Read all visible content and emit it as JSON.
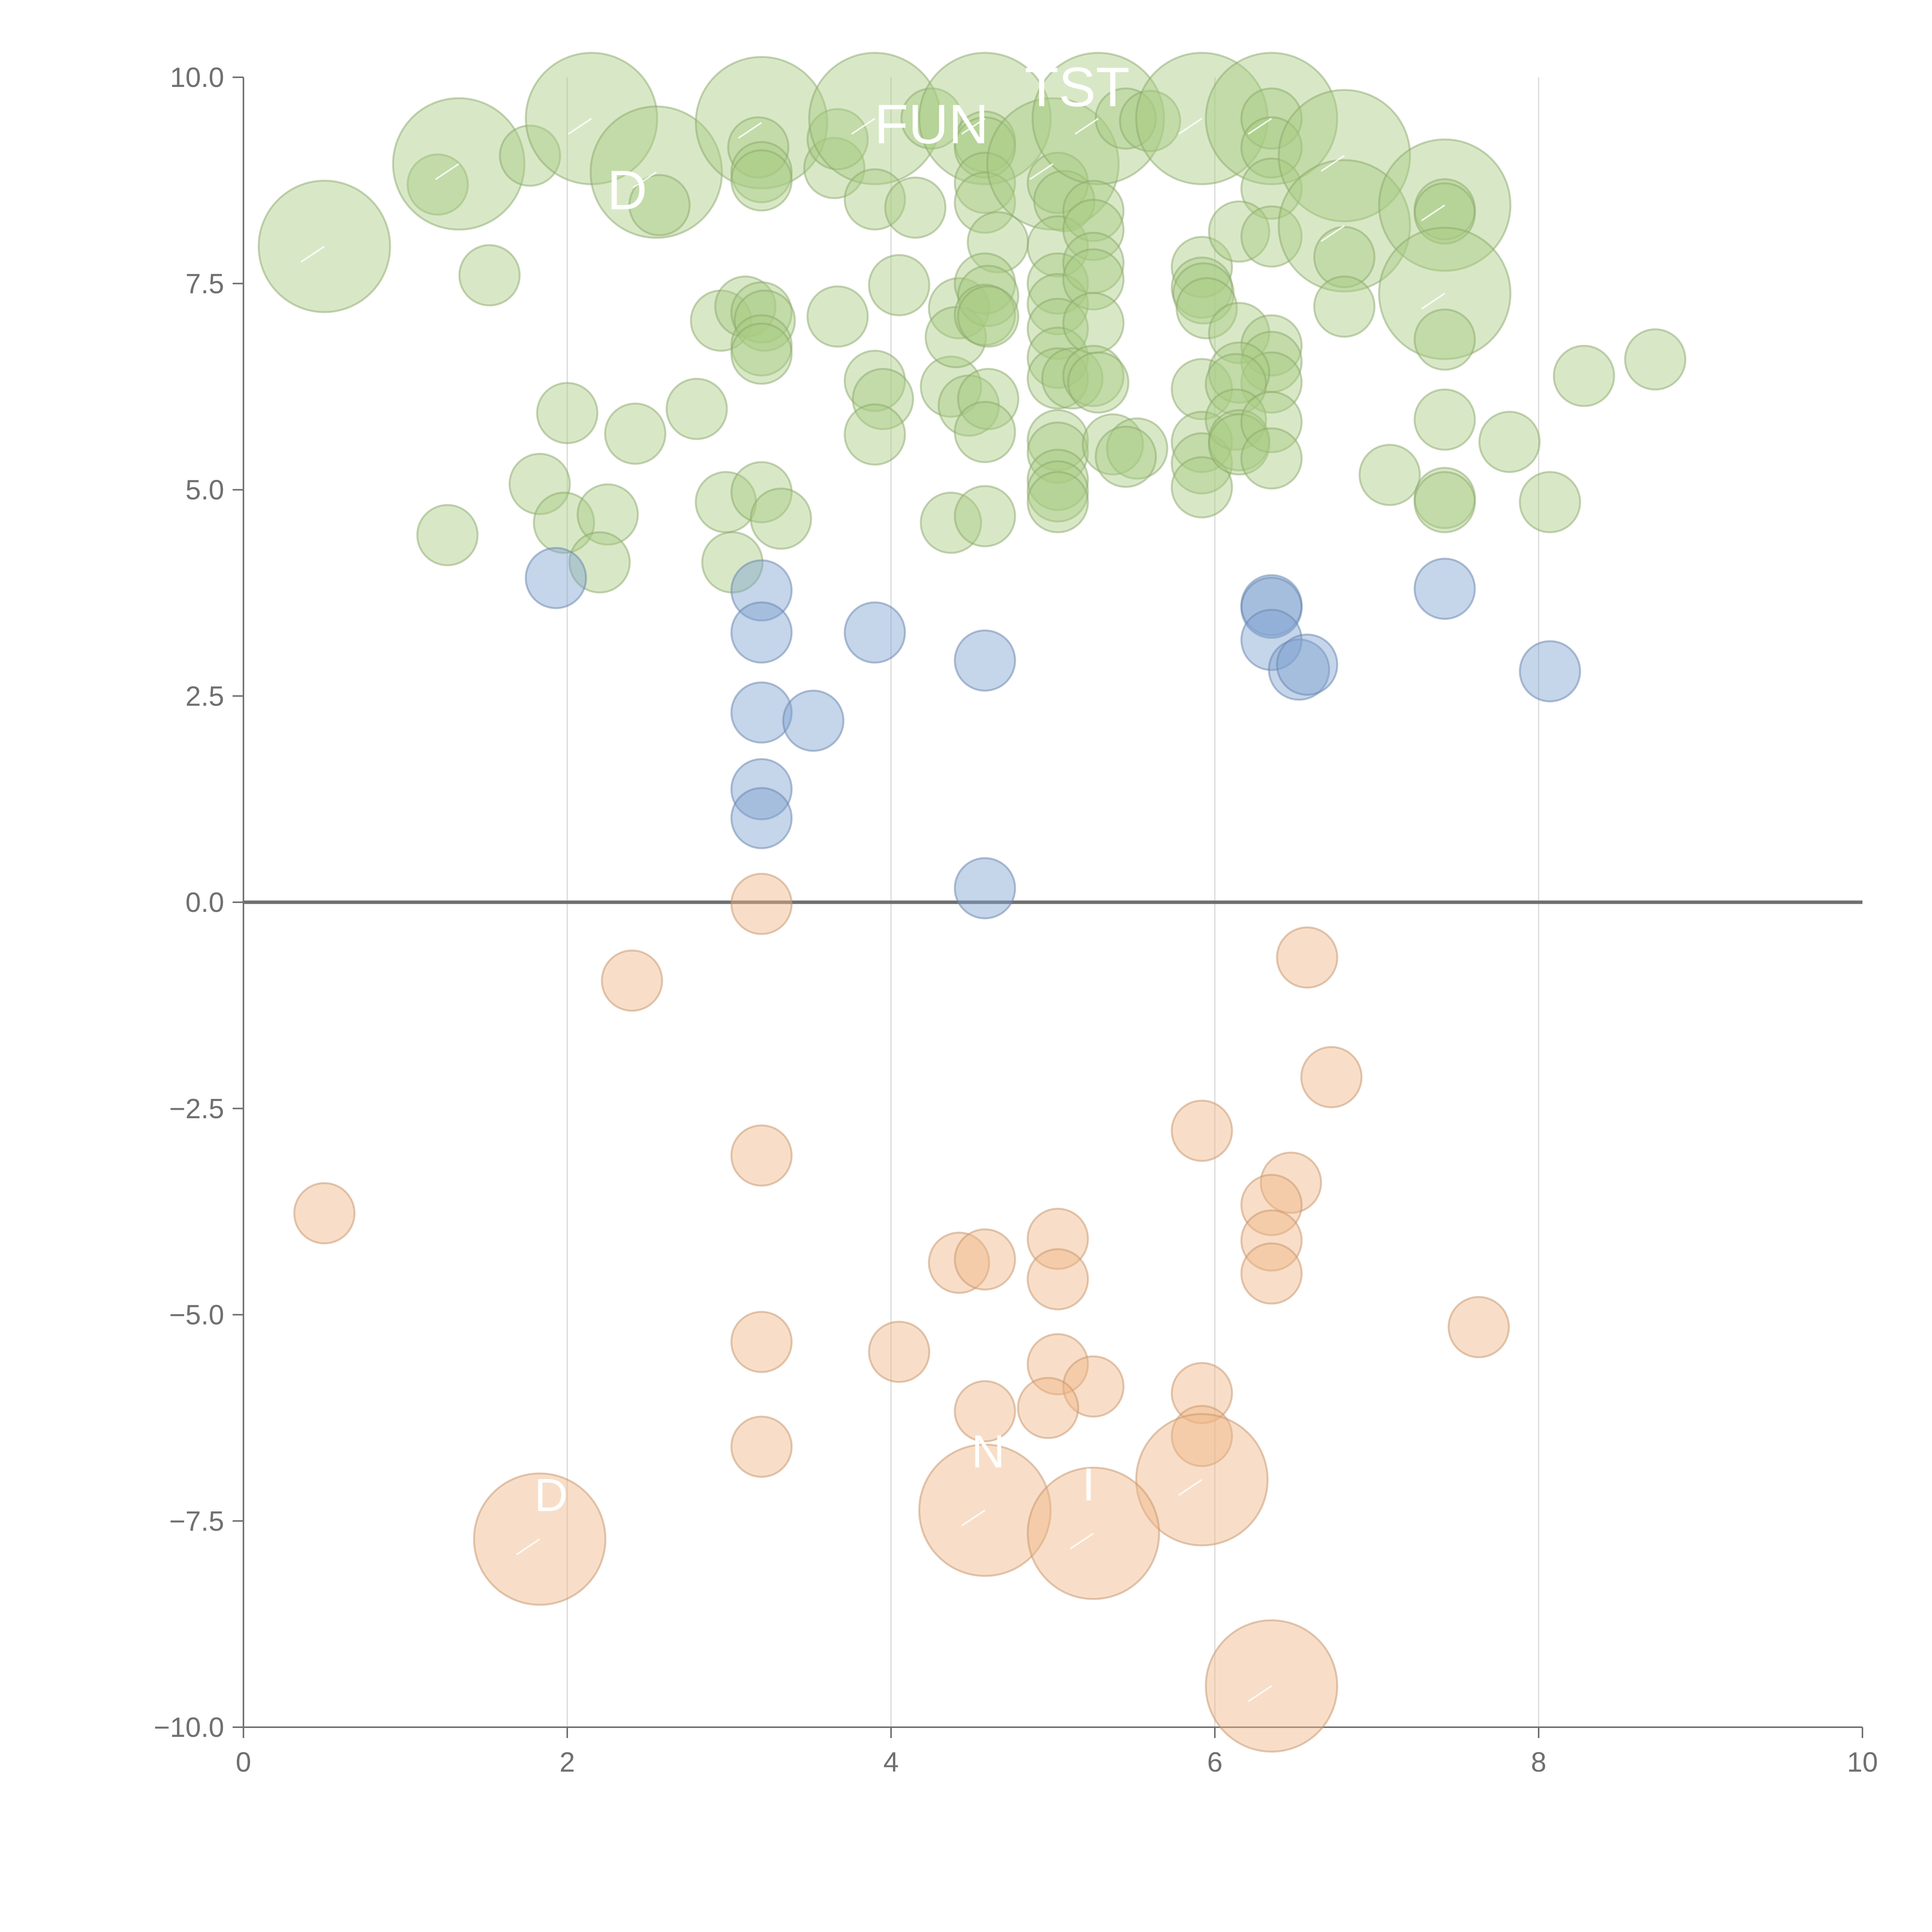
{
  "chart_data": {
    "type": "scatter",
    "subtype": "bubble",
    "title": "",
    "xlabel": "",
    "ylabel": "",
    "xlim": [
      0,
      10
    ],
    "ylim": [
      -10,
      10
    ],
    "x_ticks": [
      0,
      2,
      4,
      6,
      8,
      10
    ],
    "y_ticks": [
      -10,
      -7.5,
      -5,
      -2.5,
      0,
      2.5,
      5,
      7.5,
      10
    ],
    "x_tick_labels": [
      "0",
      "2",
      "4",
      "6",
      "8",
      "10"
    ],
    "y_tick_labels": [
      "−10.0",
      "−7.5",
      "−5.0",
      "−2.5",
      "0.0",
      "2.5",
      "5.0",
      "7.5",
      "10.0"
    ],
    "grid": "vertical",
    "zero_line": true,
    "series": [
      {
        "color": "#a9cc82",
        "points": [
          {
            "x": 0.5,
            "y": 7.95,
            "size": 3
          },
          {
            "x": 1.2,
            "y": 8.7,
            "size": 1
          },
          {
            "x": 1.33,
            "y": 8.95,
            "size": 3
          },
          {
            "x": 1.77,
            "y": 9.05,
            "size": 1
          },
          {
            "x": 2.15,
            "y": 9.5,
            "size": 3
          },
          {
            "x": 2.55,
            "y": 8.85,
            "size": 3
          },
          {
            "x": 2.57,
            "y": 8.45,
            "size": 1
          },
          {
            "x": 1.52,
            "y": 7.6,
            "size": 1
          },
          {
            "x": 2.0,
            "y": 5.93,
            "size": 1
          },
          {
            "x": 2.42,
            "y": 5.68,
            "size": 1
          },
          {
            "x": 2.8,
            "y": 5.98,
            "size": 1
          },
          {
            "x": 1.83,
            "y": 5.07,
            "size": 1
          },
          {
            "x": 1.98,
            "y": 4.6,
            "size": 1
          },
          {
            "x": 2.25,
            "y": 4.7,
            "size": 1
          },
          {
            "x": 1.26,
            "y": 4.45,
            "size": 1
          },
          {
            "x": 2.2,
            "y": 4.12,
            "size": 1
          },
          {
            "x": 2.95,
            "y": 7.05,
            "size": 1
          },
          {
            "x": 3.1,
            "y": 7.22,
            "size": 1
          },
          {
            "x": 3.2,
            "y": 9.45,
            "size": 3
          },
          {
            "x": 3.18,
            "y": 9.15,
            "size": 1
          },
          {
            "x": 3.2,
            "y": 8.85,
            "size": 1
          },
          {
            "x": 3.2,
            "y": 8.75,
            "size": 1
          },
          {
            "x": 3.2,
            "y": 7.15,
            "size": 1
          },
          {
            "x": 3.22,
            "y": 7.05,
            "size": 1
          },
          {
            "x": 3.2,
            "y": 6.75,
            "size": 1
          },
          {
            "x": 3.2,
            "y": 6.65,
            "size": 1
          },
          {
            "x": 2.98,
            "y": 4.85,
            "size": 1
          },
          {
            "x": 3.2,
            "y": 4.97,
            "size": 1
          },
          {
            "x": 3.32,
            "y": 4.65,
            "size": 1
          },
          {
            "x": 3.02,
            "y": 4.12,
            "size": 1
          },
          {
            "x": 3.65,
            "y": 8.9,
            "size": 1
          },
          {
            "x": 3.67,
            "y": 9.25,
            "size": 1
          },
          {
            "x": 3.9,
            "y": 9.5,
            "size": 3
          },
          {
            "x": 4.25,
            "y": 9.5,
            "size": 1
          },
          {
            "x": 3.9,
            "y": 8.52,
            "size": 1
          },
          {
            "x": 4.15,
            "y": 8.42,
            "size": 1
          },
          {
            "x": 3.67,
            "y": 7.1,
            "size": 1
          },
          {
            "x": 4.05,
            "y": 7.48,
            "size": 1
          },
          {
            "x": 3.9,
            "y": 6.32,
            "size": 1
          },
          {
            "x": 3.95,
            "y": 6.1,
            "size": 1
          },
          {
            "x": 3.9,
            "y": 5.67,
            "size": 1
          },
          {
            "x": 4.37,
            "y": 6.25,
            "size": 1
          },
          {
            "x": 4.37,
            "y": 4.6,
            "size": 1
          },
          {
            "x": 4.42,
            "y": 7.2,
            "size": 1
          },
          {
            "x": 4.4,
            "y": 6.85,
            "size": 1
          },
          {
            "x": 4.48,
            "y": 6.02,
            "size": 1
          },
          {
            "x": 4.58,
            "y": 9.5,
            "size": 3
          },
          {
            "x": 4.58,
            "y": 9.22,
            "size": 1
          },
          {
            "x": 4.58,
            "y": 9.15,
            "size": 1
          },
          {
            "x": 4.58,
            "y": 8.72,
            "size": 1
          },
          {
            "x": 4.58,
            "y": 8.48,
            "size": 1
          },
          {
            "x": 4.66,
            "y": 8.0,
            "size": 1
          },
          {
            "x": 4.58,
            "y": 7.5,
            "size": 1
          },
          {
            "x": 4.6,
            "y": 7.35,
            "size": 1
          },
          {
            "x": 4.58,
            "y": 7.12,
            "size": 1
          },
          {
            "x": 4.6,
            "y": 7.1,
            "size": 1
          },
          {
            "x": 4.6,
            "y": 6.1,
            "size": 1
          },
          {
            "x": 4.58,
            "y": 5.7,
            "size": 1
          },
          {
            "x": 4.58,
            "y": 4.68,
            "size": 1
          },
          {
            "x": 5.0,
            "y": 8.95,
            "size": 3
          },
          {
            "x": 5.03,
            "y": 8.72,
            "size": 1
          },
          {
            "x": 5.07,
            "y": 8.5,
            "size": 1
          },
          {
            "x": 5.03,
            "y": 7.95,
            "size": 1
          },
          {
            "x": 5.03,
            "y": 7.5,
            "size": 1
          },
          {
            "x": 5.03,
            "y": 7.25,
            "size": 1
          },
          {
            "x": 5.03,
            "y": 6.95,
            "size": 1
          },
          {
            "x": 5.03,
            "y": 6.6,
            "size": 1
          },
          {
            "x": 5.03,
            "y": 6.35,
            "size": 1
          },
          {
            "x": 5.12,
            "y": 6.35,
            "size": 1
          },
          {
            "x": 5.03,
            "y": 5.6,
            "size": 1
          },
          {
            "x": 5.03,
            "y": 5.45,
            "size": 1
          },
          {
            "x": 5.03,
            "y": 5.12,
            "size": 1
          },
          {
            "x": 5.03,
            "y": 4.98,
            "size": 1
          },
          {
            "x": 5.03,
            "y": 4.85,
            "size": 1
          },
          {
            "x": 5.28,
            "y": 9.5,
            "size": 3
          },
          {
            "x": 5.45,
            "y": 9.5,
            "size": 1
          },
          {
            "x": 5.6,
            "y": 9.47,
            "size": 1
          },
          {
            "x": 5.25,
            "y": 8.38,
            "size": 1
          },
          {
            "x": 5.25,
            "y": 8.15,
            "size": 1
          },
          {
            "x": 5.25,
            "y": 7.75,
            "size": 1
          },
          {
            "x": 5.25,
            "y": 7.55,
            "size": 1
          },
          {
            "x": 5.25,
            "y": 7.02,
            "size": 1
          },
          {
            "x": 5.25,
            "y": 6.38,
            "size": 1
          },
          {
            "x": 5.28,
            "y": 6.3,
            "size": 1
          },
          {
            "x": 5.37,
            "y": 5.55,
            "size": 1
          },
          {
            "x": 5.52,
            "y": 5.5,
            "size": 1
          },
          {
            "x": 5.45,
            "y": 5.4,
            "size": 1
          },
          {
            "x": 5.92,
            "y": 9.5,
            "size": 3
          },
          {
            "x": 5.92,
            "y": 7.7,
            "size": 1
          },
          {
            "x": 5.92,
            "y": 7.45,
            "size": 1
          },
          {
            "x": 5.93,
            "y": 7.38,
            "size": 1
          },
          {
            "x": 5.95,
            "y": 7.2,
            "size": 1
          },
          {
            "x": 5.92,
            "y": 6.22,
            "size": 1
          },
          {
            "x": 5.92,
            "y": 5.58,
            "size": 1
          },
          {
            "x": 5.92,
            "y": 5.32,
            "size": 1
          },
          {
            "x": 5.92,
            "y": 5.03,
            "size": 1
          },
          {
            "x": 6.35,
            "y": 9.5,
            "size": 3
          },
          {
            "x": 6.35,
            "y": 9.5,
            "size": 1
          },
          {
            "x": 6.35,
            "y": 9.15,
            "size": 1
          },
          {
            "x": 6.35,
            "y": 8.65,
            "size": 1
          },
          {
            "x": 6.15,
            "y": 8.13,
            "size": 1
          },
          {
            "x": 6.35,
            "y": 8.07,
            "size": 1
          },
          {
            "x": 6.15,
            "y": 6.9,
            "size": 1
          },
          {
            "x": 6.35,
            "y": 6.75,
            "size": 1
          },
          {
            "x": 6.35,
            "y": 6.55,
            "size": 1
          },
          {
            "x": 6.35,
            "y": 6.3,
            "size": 1
          },
          {
            "x": 6.15,
            "y": 6.42,
            "size": 1
          },
          {
            "x": 6.13,
            "y": 6.28,
            "size": 1
          },
          {
            "x": 6.13,
            "y": 5.85,
            "size": 1
          },
          {
            "x": 6.15,
            "y": 5.6,
            "size": 1
          },
          {
            "x": 6.15,
            "y": 5.55,
            "size": 1
          },
          {
            "x": 6.35,
            "y": 5.82,
            "size": 1
          },
          {
            "x": 6.35,
            "y": 5.38,
            "size": 1
          },
          {
            "x": 6.8,
            "y": 9.05,
            "size": 3
          },
          {
            "x": 6.8,
            "y": 8.2,
            "size": 3
          },
          {
            "x": 6.8,
            "y": 7.82,
            "size": 1
          },
          {
            "x": 6.8,
            "y": 7.22,
            "size": 1
          },
          {
            "x": 7.08,
            "y": 5.18,
            "size": 1
          },
          {
            "x": 7.42,
            "y": 8.45,
            "size": 3
          },
          {
            "x": 7.42,
            "y": 8.4,
            "size": 1
          },
          {
            "x": 7.42,
            "y": 8.35,
            "size": 1
          },
          {
            "x": 7.42,
            "y": 7.38,
            "size": 3
          },
          {
            "x": 7.42,
            "y": 6.82,
            "size": 1
          },
          {
            "x": 7.42,
            "y": 5.85,
            "size": 1
          },
          {
            "x": 7.42,
            "y": 4.9,
            "size": 1
          },
          {
            "x": 7.42,
            "y": 4.85,
            "size": 1
          },
          {
            "x": 7.82,
            "y": 5.58,
            "size": 1
          },
          {
            "x": 8.07,
            "y": 4.85,
            "size": 1
          },
          {
            "x": 8.28,
            "y": 6.38,
            "size": 1
          },
          {
            "x": 8.72,
            "y": 6.58,
            "size": 1
          }
        ]
      },
      {
        "color": "#7fa1d1",
        "points": [
          {
            "x": 1.93,
            "y": 3.93,
            "size": 1
          },
          {
            "x": 3.2,
            "y": 3.78,
            "size": 1
          },
          {
            "x": 3.2,
            "y": 3.27,
            "size": 1
          },
          {
            "x": 3.9,
            "y": 3.27,
            "size": 1
          },
          {
            "x": 3.2,
            "y": 2.3,
            "size": 1
          },
          {
            "x": 3.52,
            "y": 2.2,
            "size": 1
          },
          {
            "x": 3.2,
            "y": 1.37,
            "size": 1
          },
          {
            "x": 3.2,
            "y": 1.02,
            "size": 1
          },
          {
            "x": 4.58,
            "y": 2.93,
            "size": 1
          },
          {
            "x": 4.58,
            "y": 0.17,
            "size": 1
          },
          {
            "x": 6.35,
            "y": 3.6,
            "size": 1
          },
          {
            "x": 6.35,
            "y": 3.57,
            "size": 1
          },
          {
            "x": 6.35,
            "y": 3.18,
            "size": 1
          },
          {
            "x": 6.52,
            "y": 2.82,
            "size": 1
          },
          {
            "x": 6.57,
            "y": 2.88,
            "size": 1
          },
          {
            "x": 7.42,
            "y": 3.8,
            "size": 1
          },
          {
            "x": 8.07,
            "y": 2.8,
            "size": 1
          }
        ]
      },
      {
        "color": "#f0b584",
        "points": [
          {
            "x": 3.2,
            "y": -0.02,
            "size": 1
          },
          {
            "x": 2.4,
            "y": -0.95,
            "size": 1
          },
          {
            "x": 6.57,
            "y": -0.67,
            "size": 1
          },
          {
            "x": 6.72,
            "y": -2.12,
            "size": 1
          },
          {
            "x": 5.92,
            "y": -2.77,
            "size": 1
          },
          {
            "x": 3.2,
            "y": -3.07,
            "size": 1
          },
          {
            "x": 0.5,
            "y": -3.77,
            "size": 1
          },
          {
            "x": 6.47,
            "y": -3.4,
            "size": 1
          },
          {
            "x": 6.35,
            "y": -3.67,
            "size": 1
          },
          {
            "x": 6.35,
            "y": -4.1,
            "size": 1
          },
          {
            "x": 6.35,
            "y": -4.5,
            "size": 1
          },
          {
            "x": 5.03,
            "y": -4.08,
            "size": 1
          },
          {
            "x": 5.03,
            "y": -4.57,
            "size": 1
          },
          {
            "x": 4.42,
            "y": -4.37,
            "size": 1
          },
          {
            "x": 4.58,
            "y": -4.33,
            "size": 1
          },
          {
            "x": 3.2,
            "y": -5.33,
            "size": 1
          },
          {
            "x": 4.05,
            "y": -5.45,
            "size": 1
          },
          {
            "x": 7.63,
            "y": -5.15,
            "size": 1
          },
          {
            "x": 5.03,
            "y": -5.6,
            "size": 1
          },
          {
            "x": 5.25,
            "y": -5.87,
            "size": 1
          },
          {
            "x": 5.92,
            "y": -5.95,
            "size": 1
          },
          {
            "x": 4.58,
            "y": -6.17,
            "size": 1
          },
          {
            "x": 4.97,
            "y": -6.13,
            "size": 1
          },
          {
            "x": 5.92,
            "y": -6.47,
            "size": 1
          },
          {
            "x": 3.2,
            "y": -6.6,
            "size": 1
          },
          {
            "x": 5.92,
            "y": -7.0,
            "size": 3
          },
          {
            "x": 4.58,
            "y": -7.37,
            "size": 3
          },
          {
            "x": 5.25,
            "y": -7.65,
            "size": 3
          },
          {
            "x": 1.83,
            "y": -7.72,
            "size": 3
          },
          {
            "x": 6.35,
            "y": -9.5,
            "size": 3
          }
        ]
      }
    ],
    "annotations": [
      {
        "text": "FUN",
        "x": 4.25,
        "y": 9.2,
        "font": 3
      },
      {
        "text": "TST",
        "x": 5.15,
        "y": 9.65,
        "font": 3
      },
      {
        "text": "D",
        "x": 2.37,
        "y": 8.4,
        "font": 3
      },
      {
        "text": "N",
        "x": 4.6,
        "y": -6.85,
        "font": 2.5
      },
      {
        "text": "I",
        "x": 5.22,
        "y": -7.25,
        "font": 2.5
      },
      {
        "text": "D",
        "x": 1.9,
        "y": -7.38,
        "font": 2.5
      }
    ]
  }
}
